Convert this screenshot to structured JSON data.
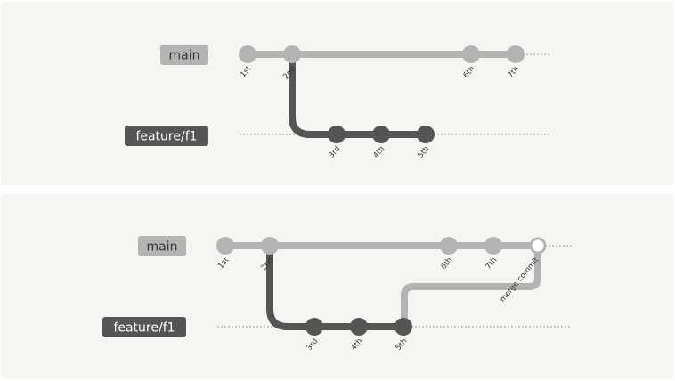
{
  "colors": {
    "main": "#b4b4b4",
    "feature": "#555555",
    "panel": "#f6f5f1",
    "dotted": "#9c9c9c"
  },
  "top": {
    "main_label": "main",
    "feature_label": "feature/f1",
    "commits": {
      "c1": "1st",
      "c2": "2nd",
      "c3": "3rd",
      "c4": "4th",
      "c5": "5th",
      "c6": "6th",
      "c7": "7th"
    }
  },
  "bottom": {
    "main_label": "main",
    "feature_label": "feature/f1",
    "commits": {
      "c1": "1st",
      "c2": "2nd",
      "c3": "3rd",
      "c4": "4th",
      "c5": "5th",
      "c6": "6th",
      "c7": "7th",
      "merge": "merge commit"
    }
  }
}
